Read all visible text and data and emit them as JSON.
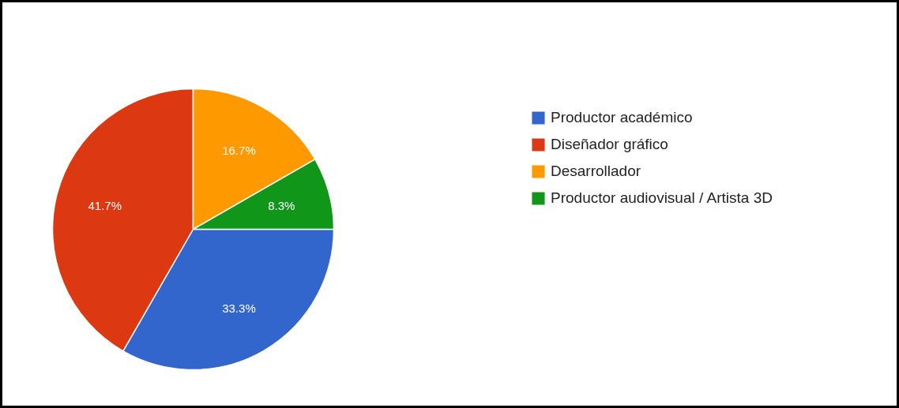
{
  "chart_data": {
    "type": "pie",
    "categories": [
      "Productor académico",
      "Diseñador gráfico",
      "Desarrollador",
      "Productor audiovisual / Artista 3D"
    ],
    "values": [
      33.3,
      41.7,
      16.7,
      8.3
    ],
    "colors": [
      "#3366cc",
      "#dc3912",
      "#ff9900",
      "#109618"
    ],
    "value_labels": [
      "33.3%",
      "41.7%",
      "16.7%",
      "8.3%"
    ],
    "legend": "right"
  }
}
